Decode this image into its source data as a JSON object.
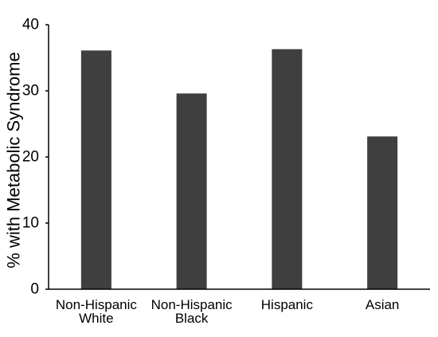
{
  "chart_data": {
    "type": "bar",
    "title": "",
    "xlabel": "",
    "ylabel": "% with Metabolic Syndrome",
    "ylim": [
      0,
      40
    ],
    "yticks": [
      0,
      10,
      20,
      30,
      40
    ],
    "grid": false,
    "legend": "none",
    "categories": [
      [
        "Non-Hispanic",
        "White"
      ],
      [
        "Non-Hispanic",
        "Black"
      ],
      [
        "Hispanic"
      ],
      [
        "Asian"
      ]
    ],
    "values": [
      36.1,
      29.6,
      36.3,
      23.1
    ],
    "bar_color": "#3f3f3f",
    "axis_color": "#000000"
  }
}
